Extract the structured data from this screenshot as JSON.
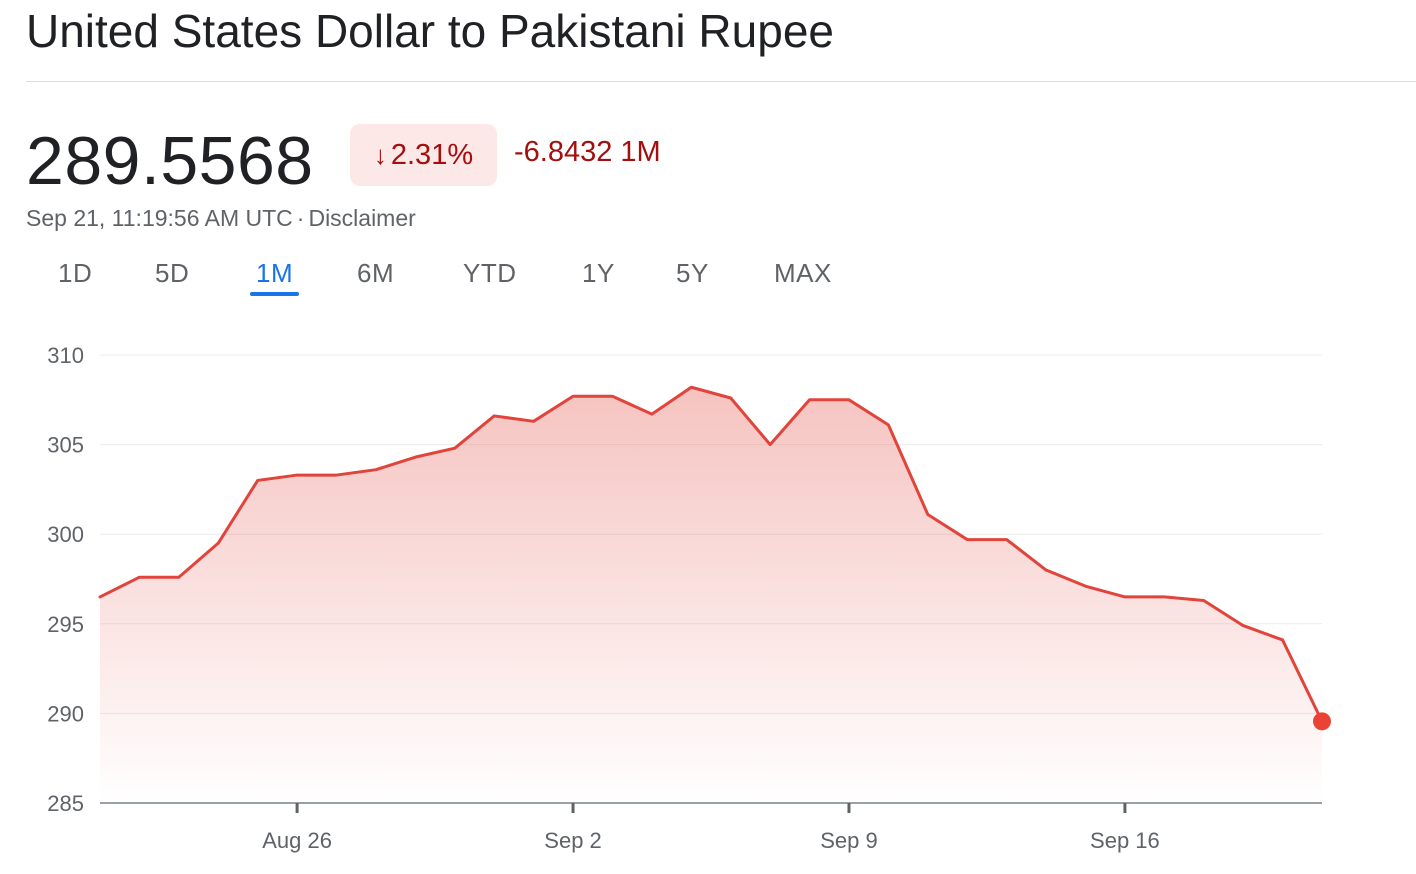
{
  "header": {
    "title": "United States Dollar to Pakistani Rupee"
  },
  "quote": {
    "price": "289.5568",
    "change_arrow": "↓",
    "change_percent": "2.31%",
    "change_value": "-6.8432 1M",
    "timestamp": "Sep 21, 11:19:56 AM UTC",
    "separator": "·",
    "disclaimer": "Disclaimer"
  },
  "tabs": [
    {
      "label": "1D"
    },
    {
      "label": "5D"
    },
    {
      "label": "1M",
      "active": true
    },
    {
      "label": "6M"
    },
    {
      "label": "YTD"
    },
    {
      "label": "1Y"
    },
    {
      "label": "5Y"
    },
    {
      "label": "MAX"
    }
  ],
  "colors": {
    "line": "#e0443a",
    "accent": "#1a73e8",
    "negative": "#a50e0e"
  },
  "chart_data": {
    "type": "area",
    "title": "",
    "xlabel": "",
    "ylabel": "",
    "ylim": [
      285,
      310
    ],
    "y_ticks": [
      310,
      305,
      300,
      295,
      290,
      285
    ],
    "x_ticks": [
      {
        "label": "Aug 26",
        "index": 5
      },
      {
        "label": "Sep 2",
        "index": 12
      },
      {
        "label": "Sep 9",
        "index": 19
      },
      {
        "label": "Sep 16",
        "index": 26
      }
    ],
    "grid": true,
    "series": [
      {
        "values": [
          296.5,
          297.6,
          297.6,
          299.5,
          303.0,
          303.3,
          303.3,
          303.6,
          304.3,
          304.8,
          306.6,
          306.3,
          307.7,
          307.7,
          306.7,
          308.2,
          307.6,
          305.0,
          307.5,
          307.5,
          306.1,
          301.1,
          299.7,
          299.7,
          298.0,
          297.1,
          296.5,
          296.5,
          296.3,
          294.9,
          294.1,
          289.5568
        ]
      }
    ]
  }
}
